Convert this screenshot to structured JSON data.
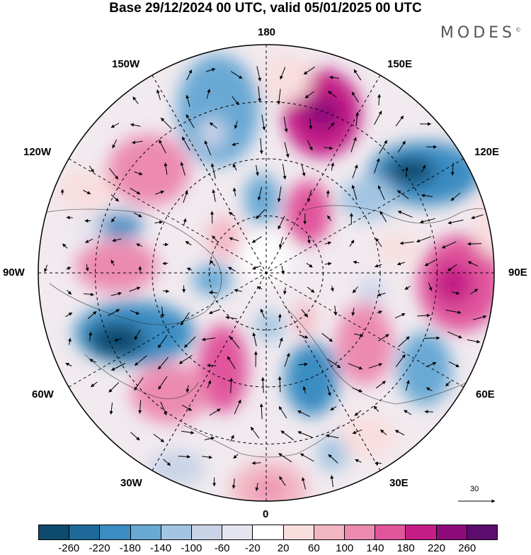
{
  "title": "Base 29/12/2024 00 UTC, valid 05/01/2025 00 UTC",
  "brand": "MODES",
  "brand_mark": "©",
  "lon_labels": {
    "l180": "180",
    "l150e": "150E",
    "l120e": "120E",
    "l90e": "90E",
    "l60e": "60E",
    "l30e": "30E",
    "l0": "0",
    "l30w": "30W",
    "l60w": "60W",
    "l90w": "90W",
    "l120w": "120W",
    "l150w": "150W"
  },
  "vector_scale": "30",
  "colorbar": {
    "colors": [
      "#0e4a6e",
      "#1d6a9a",
      "#3b8cc2",
      "#69a9d4",
      "#a3c5e2",
      "#c9d3e8",
      "#e5e5f0",
      "#ffffff",
      "#f9dede",
      "#f3b6c3",
      "#ec8ab0",
      "#e0559c",
      "#c41d86",
      "#8d0a7a",
      "#5b0c6d"
    ],
    "ticks": [
      "-260",
      "-220",
      "-180",
      "-140",
      "-100",
      "-60",
      "-20",
      "20",
      "60",
      "100",
      "140",
      "180",
      "220",
      "260"
    ]
  },
  "icons": {
    "arrow": "wind-vector-arrow",
    "scale": "reference-arrow-icon"
  }
}
